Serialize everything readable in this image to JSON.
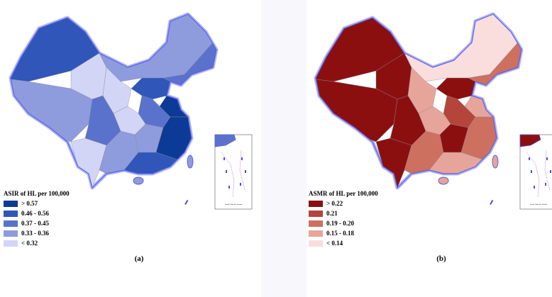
{
  "panels": [
    {
      "legend": {
        "title": "ASIR of HL per 100,000",
        "items": [
          {
            "label": "> 0.57",
            "color": "#0b3b96"
          },
          {
            "label": "0.46 - 0.56",
            "color": "#2f56b8"
          },
          {
            "label": "0.37 - 0.45",
            "color": "#5a72cc"
          },
          {
            "label": "0.33 - 0.36",
            "color": "#8e9bdd"
          },
          {
            "label": "< 0.32",
            "color": "#d2d5f5"
          }
        ]
      },
      "label": "(a)",
      "inset_label": "South China Sea Islands"
    },
    {
      "legend": {
        "title": "ASMR of HL per 100,000",
        "items": [
          {
            "label": "> 0.22",
            "color": "#8c0f10"
          },
          {
            "label": "0.21",
            "color": "#b4453b"
          },
          {
            "label": "0.19 - 0.20",
            "color": "#cd705f"
          },
          {
            "label": "0.15 - 0.18",
            "color": "#e6a49b"
          },
          {
            "label": "< 0.14",
            "color": "#fadddd"
          }
        ]
      },
      "label": "(b)",
      "inset_label": "South China Sea Islands"
    }
  ]
}
